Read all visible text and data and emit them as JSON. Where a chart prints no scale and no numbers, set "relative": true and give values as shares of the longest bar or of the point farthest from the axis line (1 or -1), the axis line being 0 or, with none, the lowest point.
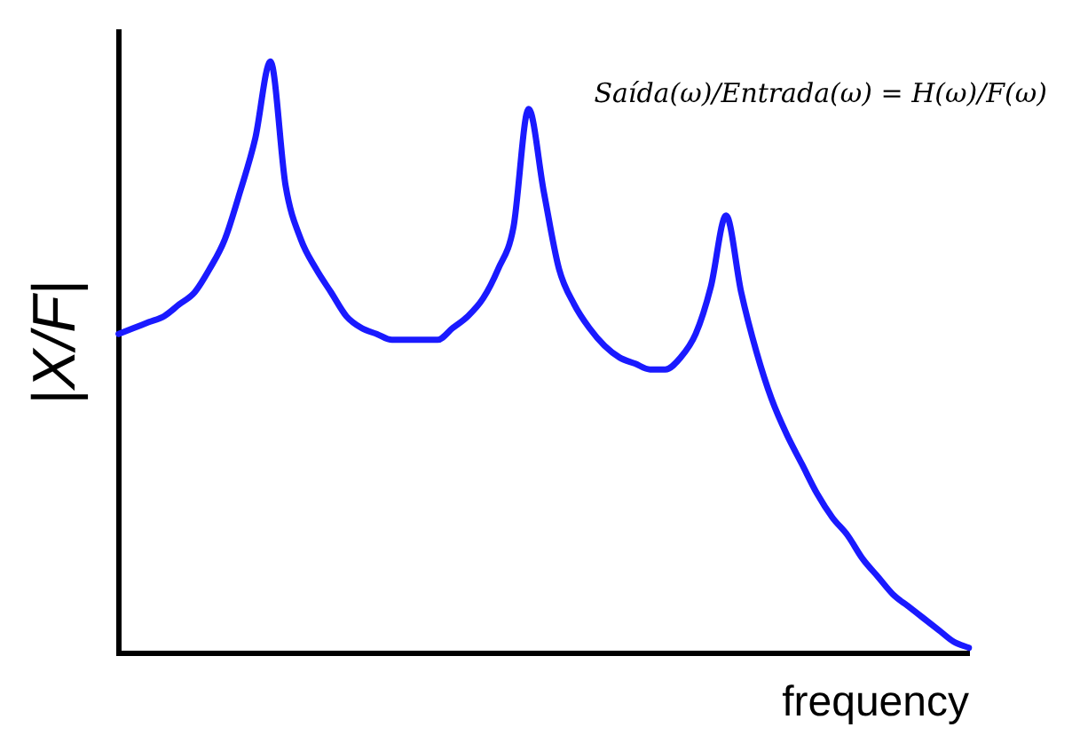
{
  "chart_data": {
    "type": "line",
    "relative": true,
    "xlabel": "frequency",
    "ylabel": "|X/F|",
    "legend": false,
    "grid": false,
    "annotations": [
      "Saída(ω)/Entrada(ω) = H(ω)/F(ω)"
    ],
    "categories": [
      null,
      null,
      null,
      null,
      null,
      null,
      null,
      null,
      null,
      null,
      null,
      null,
      null,
      null,
      null,
      null,
      null,
      null,
      null,
      null,
      null,
      null,
      null,
      null,
      null,
      null,
      null,
      null,
      null,
      null,
      null,
      null,
      null,
      null,
      null,
      null,
      null,
      null,
      null,
      null,
      null,
      null,
      null,
      null,
      null,
      null,
      null,
      null,
      null,
      null,
      null,
      null,
      null,
      null,
      null,
      null,
      null
    ],
    "series": [
      {
        "color": "#1a1aff",
        "values": [
          0.54,
          0.55,
          0.56,
          0.57,
          0.59,
          0.61,
          0.65,
          0.7,
          0.78,
          0.87,
          1,
          0.79,
          0.7,
          0.65,
          0.61,
          0.57,
          0.55,
          0.54,
          0.53,
          0.53,
          0.53,
          0.53,
          0.55,
          0.57,
          0.6,
          0.65,
          0.72,
          0.92,
          0.78,
          0.65,
          0.59,
          0.55,
          0.52,
          0.5,
          0.49,
          0.48,
          0.48,
          0.5,
          0.54,
          0.62,
          0.74,
          0.61,
          0.51,
          0.43,
          0.37,
          0.32,
          0.27,
          0.23,
          0.2,
          0.16,
          0.13,
          0.1,
          0.08,
          0.06,
          0.04,
          0.02,
          0.01
        ]
      }
    ]
  }
}
